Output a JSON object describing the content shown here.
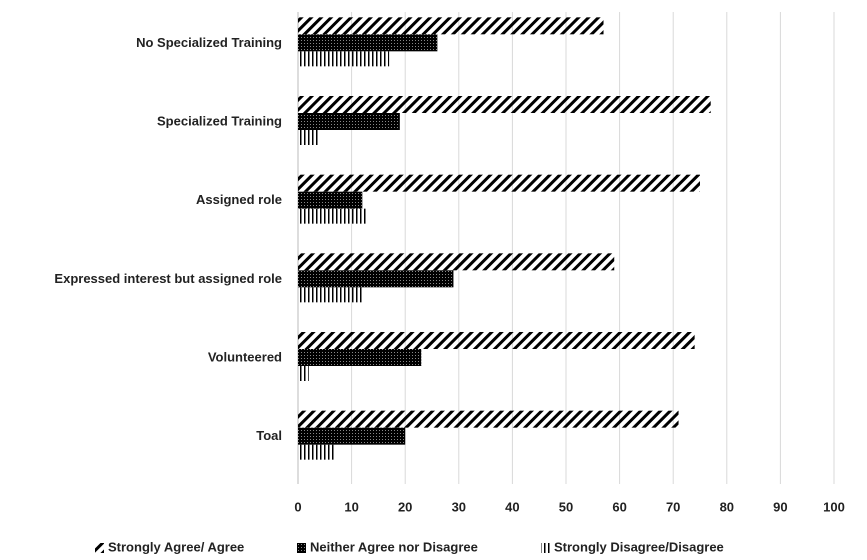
{
  "chart_data": {
    "type": "barh",
    "categories": [
      "No Specialized Training",
      "Specialized Training",
      "Assigned role",
      "Expressed interest but assigned role",
      "Volunteered",
      "Toal"
    ],
    "series": [
      {
        "name": "Strongly Agree/ Agree",
        "color": "#000000",
        "values": [
          57,
          77,
          75,
          59,
          74,
          71
        ]
      },
      {
        "name": "Neither Agree nor Disagree",
        "color": "#000000",
        "values": [
          26,
          19,
          12,
          29,
          23,
          20
        ]
      },
      {
        "name": "Strongly Disagree/Disagree",
        "color": "#000000",
        "values": [
          17,
          4,
          13,
          12,
          2,
          7
        ]
      }
    ],
    "xlim": [
      0,
      100
    ],
    "xticks": [
      0,
      10,
      20,
      30,
      40,
      50,
      60,
      70,
      80,
      90,
      100
    ],
    "grid": true,
    "legend": "bottom"
  }
}
